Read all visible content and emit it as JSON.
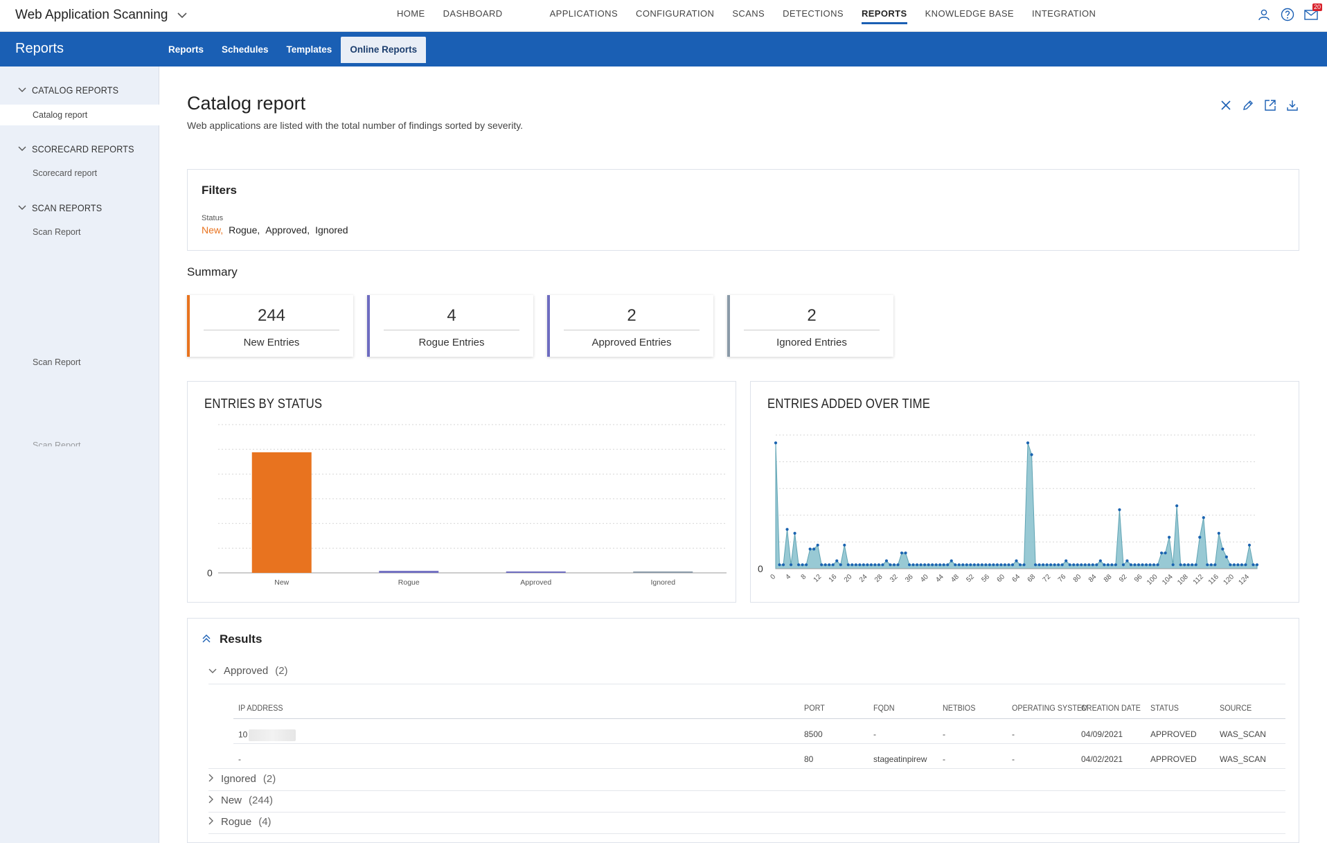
{
  "app": {
    "title": "Web Application Scanning"
  },
  "nav": [
    "HOME",
    "DASHBOARD",
    "APPLICATIONS",
    "CONFIGURATION",
    "SCANS",
    "DETECTIONS",
    "REPORTS",
    "KNOWLEDGE BASE",
    "INTEGRATION"
  ],
  "nav_active": "REPORTS",
  "notification_count": "20",
  "section": {
    "title": "Reports"
  },
  "subtabs": [
    "Reports",
    "Schedules",
    "Templates",
    "Online Reports"
  ],
  "subtab_active": "Online Reports",
  "sidebar": {
    "groups": [
      {
        "label": "CATALOG REPORTS",
        "items": [
          "Catalog report"
        ]
      },
      {
        "label": "SCORECARD REPORTS",
        "items": [
          "Scorecard report"
        ]
      },
      {
        "label": "SCAN REPORTS",
        "items": [
          "Scan Report"
        ]
      }
    ],
    "extra_items": [
      "Scan Report",
      "Scan Report"
    ]
  },
  "page": {
    "title": "Catalog report",
    "subtitle": "Web applications are listed with the total number of findings sorted by severity."
  },
  "icons": {
    "close": "close-icon",
    "edit": "pencil-icon",
    "open": "external-link-icon",
    "download": "download-icon",
    "user": "user-icon",
    "help": "help-icon",
    "mail": "mail-icon"
  },
  "filters": {
    "title": "Filters",
    "status_label": "Status",
    "status_values": [
      "New,",
      "Rogue,",
      "Approved,",
      "Ignored"
    ]
  },
  "summary": {
    "title": "Summary",
    "cards": [
      {
        "value": "244",
        "label": "New Entries",
        "color": "#e8731f"
      },
      {
        "value": "4",
        "label": "Rogue Entries",
        "color": "#6e6cc0"
      },
      {
        "value": "2",
        "label": "Approved Entries",
        "color": "#6e6cc0"
      },
      {
        "value": "2",
        "label": "Ignored Entries",
        "color": "#8a9aa8"
      }
    ]
  },
  "chart_data": [
    {
      "type": "bar",
      "title": "ENTRIES BY STATUS",
      "categories": [
        "New",
        "Rogue",
        "Approved",
        "Ignored"
      ],
      "values": [
        244,
        4,
        2,
        2
      ],
      "colors": [
        "#e8731f",
        "#6e6cc0",
        "#6e6cc0",
        "#8a9aa8"
      ],
      "ytick": "0",
      "ylim": [
        0,
        300
      ],
      "grid": true
    },
    {
      "type": "area",
      "title": "ENTRIES ADDED OVER TIME",
      "x": [
        0,
        1,
        2,
        3,
        4,
        5,
        6,
        7,
        8,
        9,
        10,
        11,
        12,
        13,
        14,
        15,
        16,
        17,
        18,
        19,
        20,
        21,
        22,
        23,
        24,
        25,
        26,
        27,
        28,
        29,
        30,
        31,
        32,
        33,
        34,
        35,
        36,
        37,
        38,
        39,
        40,
        41,
        42,
        43,
        44,
        45,
        46,
        47,
        48,
        49,
        50,
        51,
        52,
        53,
        54,
        55,
        56,
        57,
        58,
        59,
        60,
        61,
        62,
        63,
        64,
        65,
        66,
        67,
        68,
        69,
        70,
        71,
        72,
        73,
        74,
        75,
        76,
        77,
        78,
        79,
        80,
        81,
        82,
        83,
        84,
        85,
        86,
        87,
        88,
        89,
        90,
        91,
        92,
        93,
        94,
        95,
        96,
        97,
        98,
        99,
        100,
        101,
        102,
        103,
        104,
        105,
        106,
        107,
        108,
        109,
        110,
        111,
        112,
        113,
        114,
        115,
        116,
        117,
        118,
        119,
        120,
        121,
        122,
        123,
        124,
        125,
        126
      ],
      "values": [
        32,
        1,
        1,
        10,
        1,
        9,
        1,
        1,
        1,
        5,
        5,
        6,
        1,
        1,
        1,
        1,
        2,
        1,
        6,
        1,
        1,
        1,
        1,
        1,
        1,
        1,
        1,
        1,
        1,
        2,
        1,
        1,
        1,
        4,
        4,
        1,
        1,
        1,
        1,
        1,
        1,
        1,
        1,
        1,
        1,
        1,
        2,
        1,
        1,
        1,
        1,
        1,
        1,
        1,
        1,
        1,
        1,
        1,
        1,
        1,
        1,
        1,
        1,
        2,
        1,
        1,
        32,
        29,
        1,
        1,
        1,
        1,
        1,
        1,
        1,
        1,
        2,
        1,
        1,
        1,
        1,
        1,
        1,
        1,
        1,
        2,
        1,
        1,
        1,
        1,
        15,
        1,
        2,
        1,
        1,
        1,
        1,
        1,
        1,
        1,
        1,
        4,
        4,
        8,
        1,
        16,
        1,
        1,
        1,
        1,
        1,
        8,
        13,
        1,
        1,
        1,
        9,
        5,
        3,
        1,
        1,
        1,
        1,
        1,
        6,
        1,
        1
      ],
      "xticks": [
        "0",
        "4",
        "8",
        "12",
        "16",
        "20",
        "24",
        "28",
        "32",
        "36",
        "40",
        "44",
        "48",
        "52",
        "56",
        "60",
        "64",
        "68",
        "72",
        "76",
        "80",
        "84",
        "88",
        "92",
        "96",
        "100",
        "104",
        "108",
        "112",
        "116",
        "120",
        "124"
      ],
      "ytick": "0",
      "color": "#86c0cd",
      "point_color": "#1a63b0",
      "grid": true
    }
  ],
  "results": {
    "title": "Results",
    "groups": [
      {
        "label": "Approved",
        "count": "(2)",
        "expanded": true
      },
      {
        "label": "Ignored",
        "count": "(2)",
        "expanded": false
      },
      {
        "label": "New",
        "count": "(244)",
        "expanded": false
      },
      {
        "label": "Rogue",
        "count": "(4)",
        "expanded": false
      }
    ],
    "columns": [
      "IP ADDRESS",
      "PORT",
      "FQDN",
      "NETBIOS",
      "OPERATING SYSTEM",
      "CREATION DATE",
      "STATUS",
      "SOURCE"
    ],
    "rows": [
      [
        "10",
        "8500",
        "-",
        "-",
        "-",
        "04/09/2021",
        "APPROVED",
        "WAS_SCAN"
      ],
      [
        "-",
        "80",
        "stageatinpirew",
        "-",
        "-",
        "04/02/2021",
        "APPROVED",
        "WAS_SCAN"
      ]
    ]
  }
}
